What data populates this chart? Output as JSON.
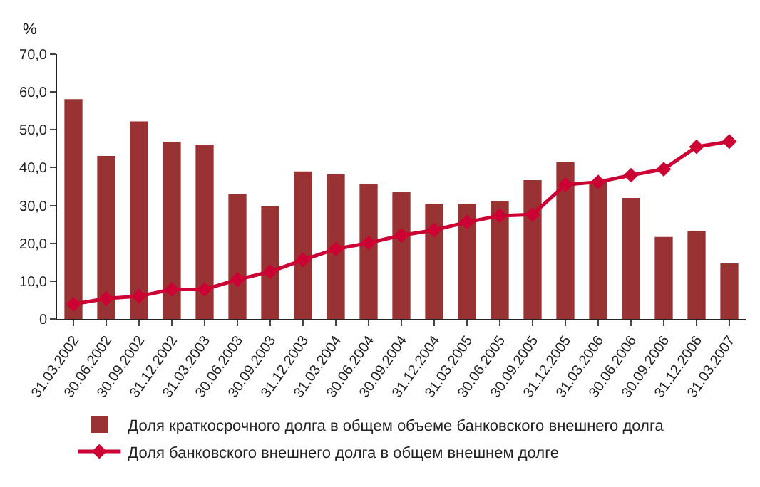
{
  "chart_data": {
    "type": "bar",
    "ylabel": "%",
    "categories": [
      "31.03.2002",
      "30.06.2002",
      "30.09.2002",
      "31.12.2002",
      "31.03.2003",
      "30.06.2003",
      "30.09.2003",
      "31.12.2003",
      "31.03.2004",
      "30.06.2004",
      "30.09.2004",
      "31.12.2004",
      "31.03.2005",
      "30.06.2005",
      "30.09.2005",
      "31.12.2005",
      "31.03.2006",
      "30.06.2006",
      "30.09.2006",
      "31.12.2006",
      "31.03.2007"
    ],
    "series": [
      {
        "name": "Доля краткосрочного долга в общем объеме банковского внешнего долга",
        "color": "#993333",
        "values": [
          58.1,
          43.1,
          52.2,
          46.8,
          46.1,
          33.1,
          29.8,
          39.0,
          38.2,
          35.7,
          33.5,
          30.5,
          30.5,
          31.2,
          36.7,
          41.5,
          36.2,
          32.0,
          21.7,
          23.3,
          14.7
        ]
      },
      {
        "name": "Доля банковского внешнего долга в общем внешнем долге",
        "type": "line",
        "color": "#cc0033",
        "marker": "diamond",
        "line_style": "solid",
        "values": [
          3.9,
          5.4,
          6.0,
          7.8,
          7.8,
          10.4,
          12.5,
          15.6,
          18.5,
          20.1,
          22.1,
          23.5,
          25.6,
          27.3,
          27.6,
          35.5,
          36.2,
          38.0,
          39.6,
          45.5,
          46.9
        ]
      }
    ],
    "ylim": [
      0,
      70
    ],
    "yticks": [
      0,
      {
        "value": 10,
        "label": "10,0"
      },
      {
        "value": 20,
        "label": "20,0"
      },
      {
        "value": 30,
        "label": "30,0"
      },
      {
        "value": 40,
        "label": "40,0"
      },
      {
        "value": 50,
        "label": "50,0"
      },
      {
        "value": 60,
        "label": "60,0"
      },
      {
        "value": 70,
        "label": "70,0"
      }
    ],
    "grid": false,
    "legend": "bottom"
  }
}
